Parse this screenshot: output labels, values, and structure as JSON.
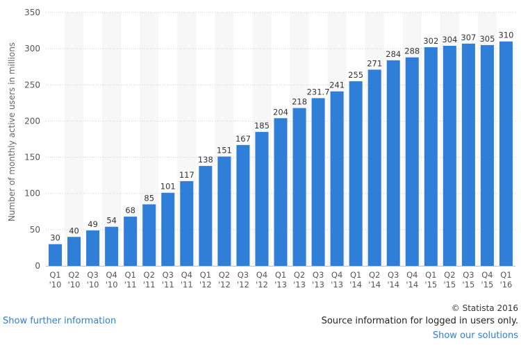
{
  "chart_data": {
    "type": "bar",
    "categories": [
      "Q1 '10",
      "Q2 '10",
      "Q3 '10",
      "Q4 '10",
      "Q1 '11",
      "Q2 '11",
      "Q3 '11",
      "Q4 '11",
      "Q1 '12",
      "Q2 '12",
      "Q3 '12",
      "Q4 '12",
      "Q1 '13",
      "Q2 '13",
      "Q3 '13",
      "Q4 '13",
      "Q1 '14",
      "Q2 '14",
      "Q3 '14",
      "Q4 '14",
      "Q1 '15",
      "Q2 '15",
      "Q3 '15",
      "Q4 '15",
      "Q1 '16"
    ],
    "tick_lines": [
      [
        "Q1",
        "'10"
      ],
      [
        "Q2",
        "'10"
      ],
      [
        "Q3",
        "'10"
      ],
      [
        "Q4",
        "'10"
      ],
      [
        "Q1",
        "'11"
      ],
      [
        "Q2",
        "'11"
      ],
      [
        "Q3",
        "'11"
      ],
      [
        "Q4",
        "'11"
      ],
      [
        "Q1",
        "'12"
      ],
      [
        "Q2",
        "'12"
      ],
      [
        "Q3",
        "'12"
      ],
      [
        "Q4",
        "'12"
      ],
      [
        "Q1",
        "'13"
      ],
      [
        "Q2",
        "'13"
      ],
      [
        "Q3",
        "'13"
      ],
      [
        "Q4",
        "'13"
      ],
      [
        "Q1",
        "'14"
      ],
      [
        "Q2",
        "'14"
      ],
      [
        "Q3",
        "'14"
      ],
      [
        "Q4",
        "'14"
      ],
      [
        "Q1",
        "'15"
      ],
      [
        "Q2",
        "'15"
      ],
      [
        "Q3",
        "'15"
      ],
      [
        "Q4",
        "'15"
      ],
      [
        "Q1",
        "'16"
      ]
    ],
    "values": [
      30,
      40,
      49,
      54,
      68,
      85,
      101,
      117,
      138,
      151,
      167,
      185,
      204,
      218,
      231.7,
      241,
      255,
      271,
      284,
      288,
      302,
      304,
      307,
      305,
      310
    ],
    "value_labels": [
      "30",
      "40",
      "49",
      "54",
      "68",
      "85",
      "101",
      "117",
      "138",
      "151",
      "167",
      "185",
      "204",
      "218",
      "231.7",
      "241",
      "255",
      "271",
      "284",
      "288",
      "302",
      "304",
      "307",
      "305",
      "310"
    ],
    "ylabel": "Number of monthly active users in millions",
    "xlabel": "",
    "ylim": [
      0,
      350
    ],
    "yticks": [
      0,
      50,
      100,
      150,
      200,
      250,
      300,
      350
    ],
    "grid": true,
    "bar_color": "#2f7ed8",
    "band_color": "#f7f7f7"
  },
  "footer": {
    "show_further": "Show further information",
    "copyright": "© Statista 2016",
    "source": "Source information for logged in users only.",
    "show_solutions": "Show our solutions"
  }
}
